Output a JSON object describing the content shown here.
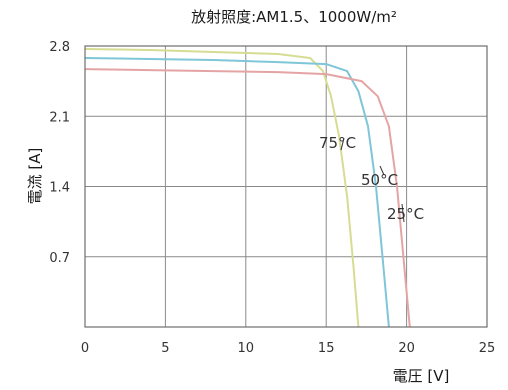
{
  "chart_data": {
    "type": "line",
    "title": "放射照度:AM1.5、1000W/m²",
    "xlabel": "電圧 [V]",
    "ylabel": "電流 [A]",
    "xlim": [
      0,
      25
    ],
    "ylim": [
      0,
      2.8
    ],
    "xticks": [
      "0",
      "5",
      "10",
      "15",
      "20",
      "25"
    ],
    "yticks": [
      "0.7",
      "1.4",
      "2.1",
      "2.8"
    ],
    "grid": true,
    "annotations": [
      "75°C",
      "50°C",
      "25°C"
    ],
    "series": [
      {
        "name": "75°C",
        "color": "#d6dc92",
        "points": [
          [
            0,
            2.77
          ],
          [
            4,
            2.76
          ],
          [
            8,
            2.74
          ],
          [
            12,
            2.72
          ],
          [
            14,
            2.68
          ],
          [
            14.8,
            2.55
          ],
          [
            15.3,
            2.3
          ],
          [
            15.8,
            1.9
          ],
          [
            16.3,
            1.3
          ],
          [
            16.7,
            0.6
          ],
          [
            17.0,
            0.0
          ]
        ]
      },
      {
        "name": "50°C",
        "color": "#7ec6d8",
        "points": [
          [
            0,
            2.68
          ],
          [
            4,
            2.67
          ],
          [
            8,
            2.66
          ],
          [
            12,
            2.64
          ],
          [
            15,
            2.62
          ],
          [
            16.3,
            2.55
          ],
          [
            17.0,
            2.35
          ],
          [
            17.6,
            2.0
          ],
          [
            18.1,
            1.4
          ],
          [
            18.5,
            0.7
          ],
          [
            18.9,
            0.0
          ]
        ]
      },
      {
        "name": "25°C",
        "color": "#e4a4a4",
        "points": [
          [
            0,
            2.57
          ],
          [
            4,
            2.56
          ],
          [
            8,
            2.55
          ],
          [
            12,
            2.54
          ],
          [
            15,
            2.52
          ],
          [
            17.2,
            2.45
          ],
          [
            18.2,
            2.3
          ],
          [
            18.9,
            2.0
          ],
          [
            19.4,
            1.4
          ],
          [
            19.8,
            0.7
          ],
          [
            20.2,
            0.0
          ]
        ]
      }
    ]
  }
}
